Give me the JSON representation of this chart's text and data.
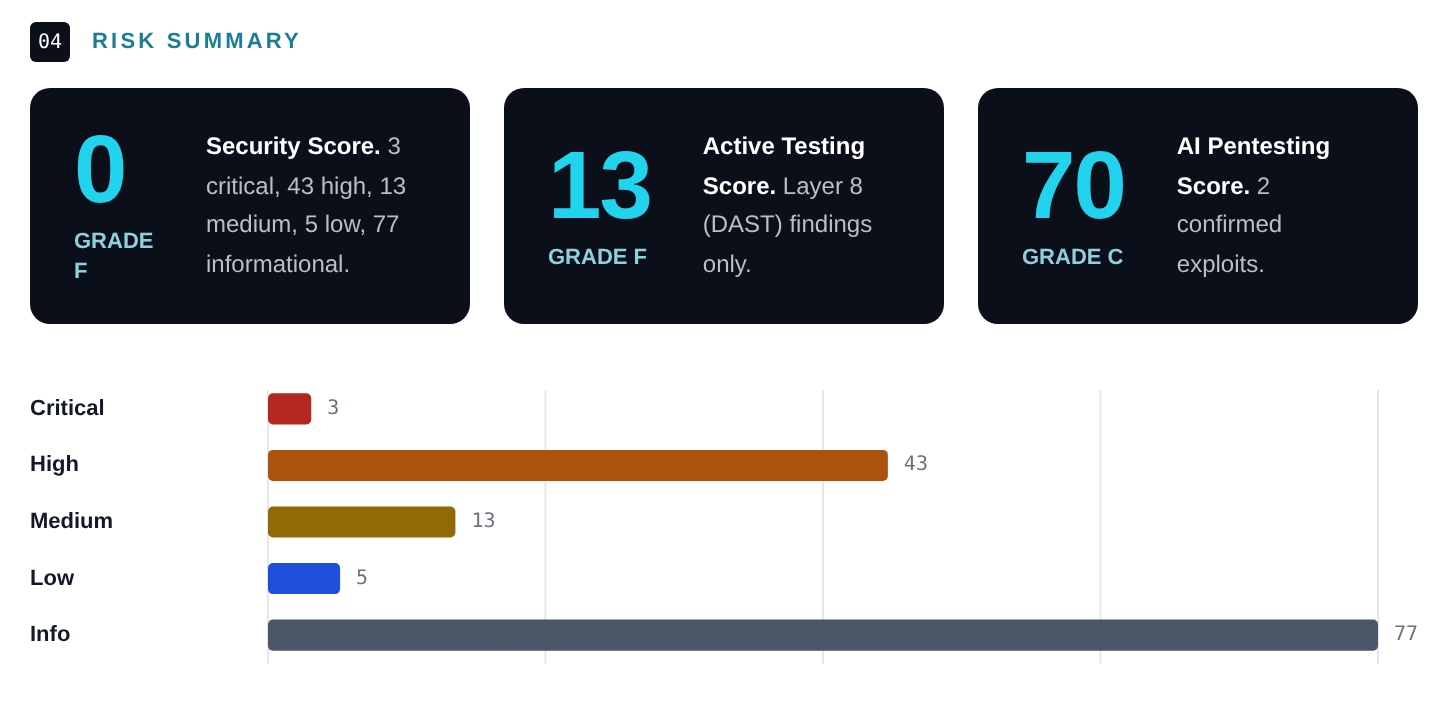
{
  "chart_data": [
    {
      "type": "other",
      "title": "RISK SUMMARY",
      "categories": [
        "Security Score.",
        "Active Testing Score.",
        "AI Pentesting Score."
      ],
      "values": [
        0,
        13,
        70
      ],
      "color": "#0b0f19",
      "data_labels": true,
      "annotations": [
        "04",
        "GRADE F",
        "3 critical, 43 high, 13 medium, 5 low, 77 informational.",
        "GRADE F",
        "Layer 8 (DAST) findings only.",
        "GRADE C",
        "2 confirmed exploits."
      ]
    },
    {
      "type": "bar",
      "orientation": "horizontal",
      "categories": [
        "Critical",
        "High",
        "Medium",
        "Low",
        "Info"
      ],
      "values": [
        3,
        43,
        13,
        5,
        77
      ],
      "colors": [
        "#b52822",
        "#ad520c",
        "#8f6a05",
        "#1f4fd8",
        "#4b5669"
      ],
      "xlim": [
        0,
        77
      ],
      "xticks": [
        {
          "value": 0,
          "label": null
        },
        {
          "value": 19.25,
          "label": null
        },
        {
          "value": 38.5,
          "label": null
        },
        {
          "value": 57.75,
          "label": null
        },
        {
          "value": 77,
          "label": null
        }
      ],
      "grid": "x",
      "tick_labels": "y",
      "data_labels": true
    }
  ]
}
